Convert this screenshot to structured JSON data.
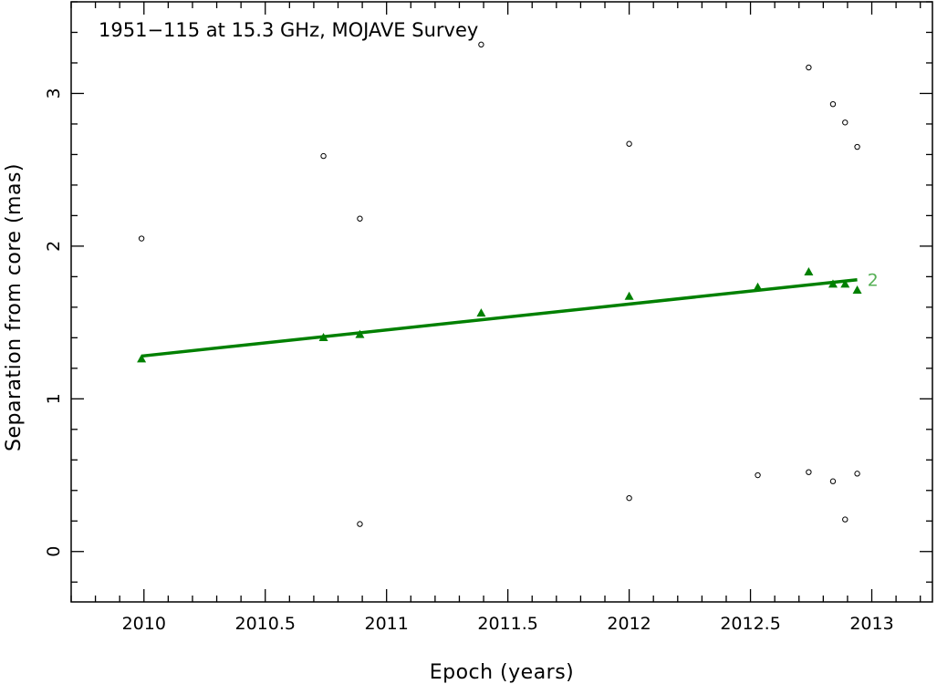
{
  "chart_data": {
    "type": "scatter",
    "title": "1951−115 at 15.3 GHz, MOJAVE Survey",
    "xlabel": "Epoch (years)",
    "ylabel": "Separation from core (mas)",
    "xlim": [
      2009.7,
      2013.25
    ],
    "ylim": [
      -0.33,
      3.6
    ],
    "x_ticks": [
      2010,
      2010.5,
      2011,
      2011.5,
      2012,
      2012.5,
      2013
    ],
    "x_tick_labels": [
      "2010",
      "2010.5",
      "2011",
      "2011.5",
      "2012",
      "2012.5",
      "2013"
    ],
    "y_ticks": [
      0,
      1,
      2,
      3
    ],
    "y_tick_labels": [
      "0",
      "1",
      "2",
      "3"
    ],
    "grid": false,
    "legend": "none",
    "series": [
      {
        "marker": "open-circle",
        "color": "#000000",
        "points": [
          [
            2009.99,
            2.05
          ],
          [
            2010.74,
            2.59
          ],
          [
            2010.89,
            2.18
          ],
          [
            2010.89,
            0.18
          ],
          [
            2011.39,
            3.32
          ],
          [
            2012.0,
            2.67
          ],
          [
            2012.0,
            0.35
          ],
          [
            2012.53,
            0.5
          ],
          [
            2012.74,
            3.17
          ],
          [
            2012.74,
            0.52
          ],
          [
            2012.84,
            2.93
          ],
          [
            2012.84,
            0.46
          ],
          [
            2012.89,
            2.81
          ],
          [
            2012.89,
            0.21
          ],
          [
            2012.94,
            2.65
          ],
          [
            2012.94,
            0.51
          ]
        ]
      },
      {
        "name": "2",
        "marker": "filled-triangle",
        "color": "#008000",
        "points": [
          [
            2009.99,
            1.26
          ],
          [
            2010.74,
            1.4
          ],
          [
            2010.89,
            1.42
          ],
          [
            2011.39,
            1.56
          ],
          [
            2012.0,
            1.67
          ],
          [
            2012.53,
            1.73
          ],
          [
            2012.74,
            1.83
          ],
          [
            2012.84,
            1.75
          ],
          [
            2012.89,
            1.75
          ],
          [
            2012.94,
            1.71
          ]
        ],
        "fit_line": {
          "x": [
            2009.99,
            2012.94
          ],
          "y": [
            1.28,
            1.78
          ]
        }
      }
    ]
  }
}
